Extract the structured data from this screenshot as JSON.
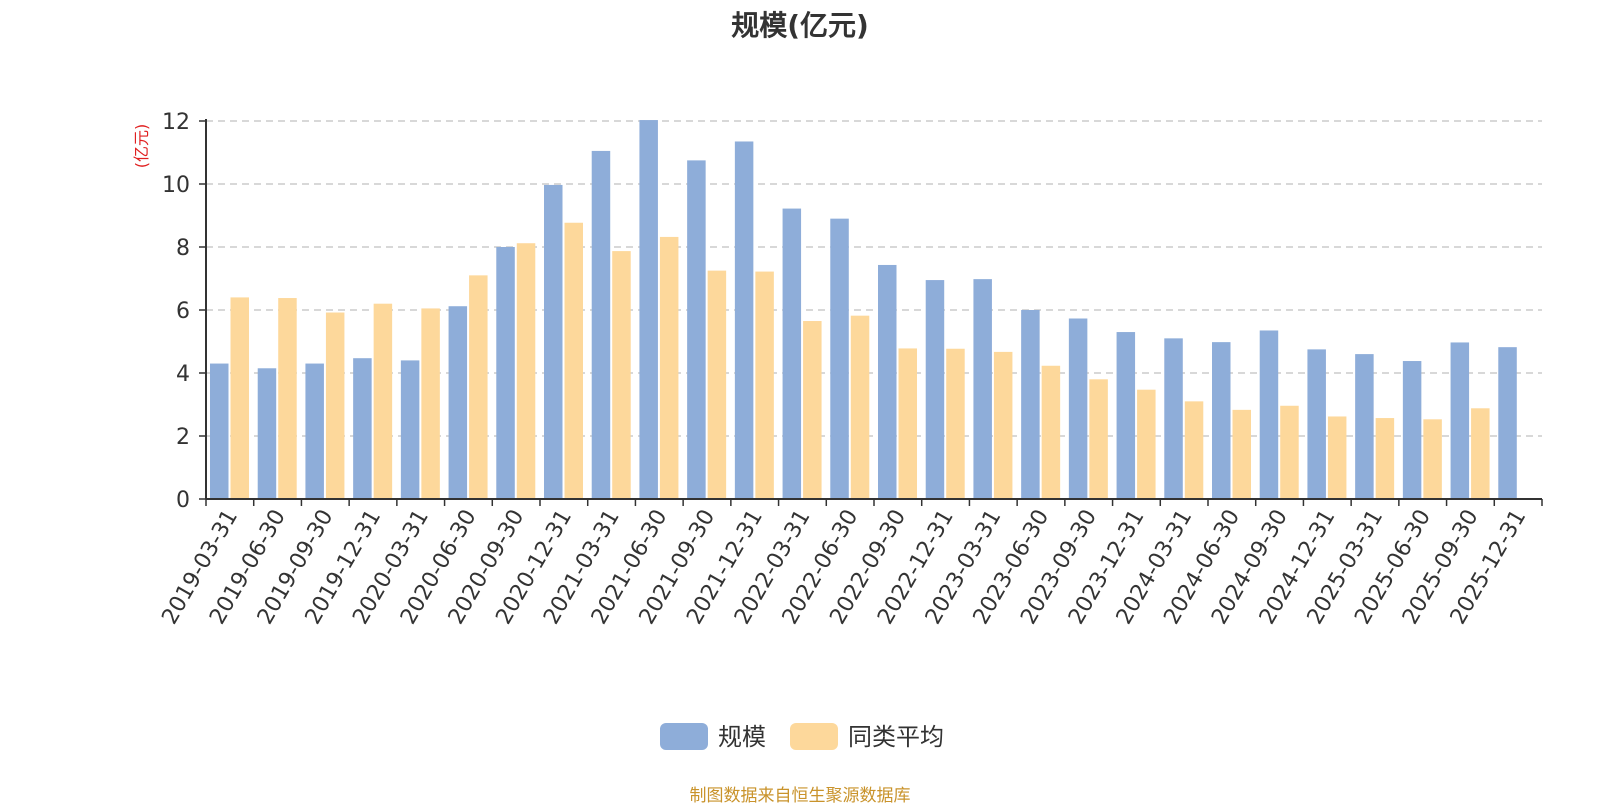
{
  "colors": {
    "scale": "#8eadd9",
    "peer": "#fdd89b",
    "axis": "#333333",
    "grid": "#cccccc",
    "unit": "#e02020",
    "source": "#c9932b"
  },
  "source_note": "制图数据来自恒生聚源数据库",
  "chart_data": {
    "type": "bar",
    "title": "规模(亿元)",
    "ylabel": "(亿元)",
    "xlabel": "",
    "ylim": [
      0,
      12
    ],
    "yticks": [
      0,
      2,
      4,
      6,
      8,
      10,
      12
    ],
    "grid": true,
    "legend_position": "bottom-center",
    "categories": [
      "2019-03-31",
      "2019-06-30",
      "2019-09-30",
      "2019-12-31",
      "2020-03-31",
      "2020-06-30",
      "2020-09-30",
      "2020-12-31",
      "2021-03-31",
      "2021-06-30",
      "2021-09-30",
      "2021-12-31",
      "2022-03-31",
      "2022-06-30",
      "2022-09-30",
      "2022-12-31",
      "2023-03-31",
      "2023-06-30",
      "2023-09-30",
      "2023-12-31",
      "2024-03-31",
      "2024-06-30",
      "2024-09-30",
      "2024-12-31",
      "2025-03-31",
      "2025-06-30",
      "2025-09-30",
      "2025-12-31"
    ],
    "series": [
      {
        "name": "规模",
        "color": "#8eadd9",
        "values": [
          4.3,
          4.15,
          4.3,
          4.47,
          4.4,
          6.12,
          8.0,
          9.97,
          11.05,
          12.03,
          10.75,
          11.35,
          9.22,
          8.9,
          7.43,
          6.95,
          6.98,
          6.0,
          5.73,
          5.3,
          5.1,
          4.98,
          5.35,
          4.75,
          4.6,
          4.38,
          4.97,
          4.82
        ]
      },
      {
        "name": "同类平均",
        "color": "#fdd89b",
        "values": [
          6.4,
          6.38,
          5.92,
          6.2,
          6.05,
          7.1,
          8.12,
          8.77,
          7.87,
          8.32,
          7.25,
          7.22,
          5.65,
          5.82,
          4.78,
          4.77,
          4.67,
          4.23,
          3.8,
          3.47,
          3.1,
          2.83,
          2.96,
          2.62,
          2.57,
          2.53,
          2.88,
          null
        ]
      }
    ]
  }
}
